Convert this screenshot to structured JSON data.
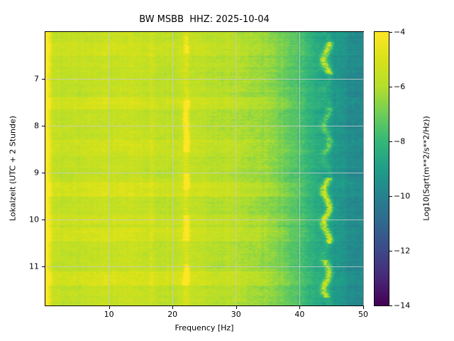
{
  "chart_data": {
    "type": "heatmap",
    "title": "BW MSBB  HHZ: 2025-10-04",
    "xlabel": "Frequency [Hz]",
    "ylabel": "Lokalzeit (UTC + 2 Stunde)",
    "x_range": [
      0,
      50
    ],
    "x_ticks": [
      10,
      20,
      30,
      40,
      50
    ],
    "x_tick_labels": [
      "10",
      "20",
      "30",
      "40",
      "50"
    ],
    "y_range": [
      6.0,
      11.83
    ],
    "y_ticks": [
      7,
      8,
      9,
      10,
      11
    ],
    "y_tick_labels": [
      "7",
      "8",
      "9",
      "10",
      "11"
    ],
    "grid": true,
    "colormap": "viridis",
    "value_range": [
      -14,
      -4
    ],
    "colormap_stops": [
      "#440154",
      "#482878",
      "#3e4989",
      "#31688e",
      "#26828e",
      "#1f9e89",
      "#35b779",
      "#6ece58",
      "#b5de2b",
      "#d8e219",
      "#fde725"
    ],
    "colorbar": {
      "label": "Log10(Sqrt(m**2/s**2/Hz))",
      "ticks": [
        -4,
        -6,
        -8,
        -10,
        -12,
        -14
      ],
      "tick_labels": [
        "−4",
        "−6",
        "−8",
        "−10",
        "−12",
        "−14"
      ]
    },
    "model": {
      "seed": 42,
      "fine_amp": 0.5,
      "coarse_amp": 0.32,
      "row_amp": 0.26,
      "col_amp": 0.3,
      "band_flat_max": 28,
      "low_freq_boost": {
        "cutoff": 1.2,
        "amp": 1.3
      },
      "base_profile": [
        [
          0,
          -4.7
        ],
        [
          0.5,
          -5.1
        ],
        [
          1.2,
          -5.6
        ],
        [
          4,
          -5.75
        ],
        [
          7,
          -5.65
        ],
        [
          10,
          -5.55
        ],
        [
          13,
          -5.45
        ],
        [
          16,
          -5.7
        ],
        [
          19,
          -5.75
        ],
        [
          22,
          -5.65
        ],
        [
          25,
          -5.9
        ],
        [
          28,
          -5.95
        ],
        [
          31,
          -6.05
        ],
        [
          34,
          -6.35
        ],
        [
          37,
          -6.9
        ],
        [
          40,
          -7.6
        ],
        [
          42,
          -8.3
        ],
        [
          44,
          -8.9
        ],
        [
          46,
          -9.3
        ],
        [
          48,
          -9.6
        ],
        [
          50,
          -9.8
        ]
      ],
      "bands": [
        [
          6.22,
          6.5,
          0.3
        ],
        [
          7.38,
          7.65,
          0.5
        ],
        [
          8.3,
          8.65,
          0.3
        ],
        [
          9.2,
          9.5,
          0.55
        ],
        [
          9.9,
          10.1,
          0.3
        ],
        [
          10.15,
          10.45,
          0.45
        ],
        [
          11.1,
          11.4,
          0.5
        ]
      ],
      "lines": [
        {
          "freq": 22.1,
          "sigma": 0.3,
          "base_boost": 0.7,
          "wobble": 0.07,
          "wobble_speed": 7,
          "phase": 0,
          "intervals": [
            [
              6.1,
              6.45,
              1.6
            ],
            [
              7.45,
              8.55,
              2.8
            ],
            [
              9.0,
              9.35,
              2.6
            ],
            [
              9.9,
              10.45,
              2.4
            ],
            [
              10.95,
              11.4,
              2.7
            ]
          ]
        },
        {
          "freq": 44.2,
          "sigma": 0.4,
          "base_boost": 0.5,
          "wobble": 0.45,
          "wobble_speed": 9,
          "phase": 2,
          "intervals": [
            [
              6.2,
              6.9,
              3.0
            ],
            [
              7.6,
              8.6,
              1.5
            ],
            [
              9.1,
              10.5,
              3.1
            ],
            [
              10.85,
              11.65,
              2.9
            ]
          ]
        },
        {
          "freq": 16.7,
          "sigma": 0.25,
          "base_boost": 0.35,
          "wobble": 0.02,
          "wobble_speed": 5,
          "phase": 1,
          "intervals": []
        }
      ]
    }
  }
}
